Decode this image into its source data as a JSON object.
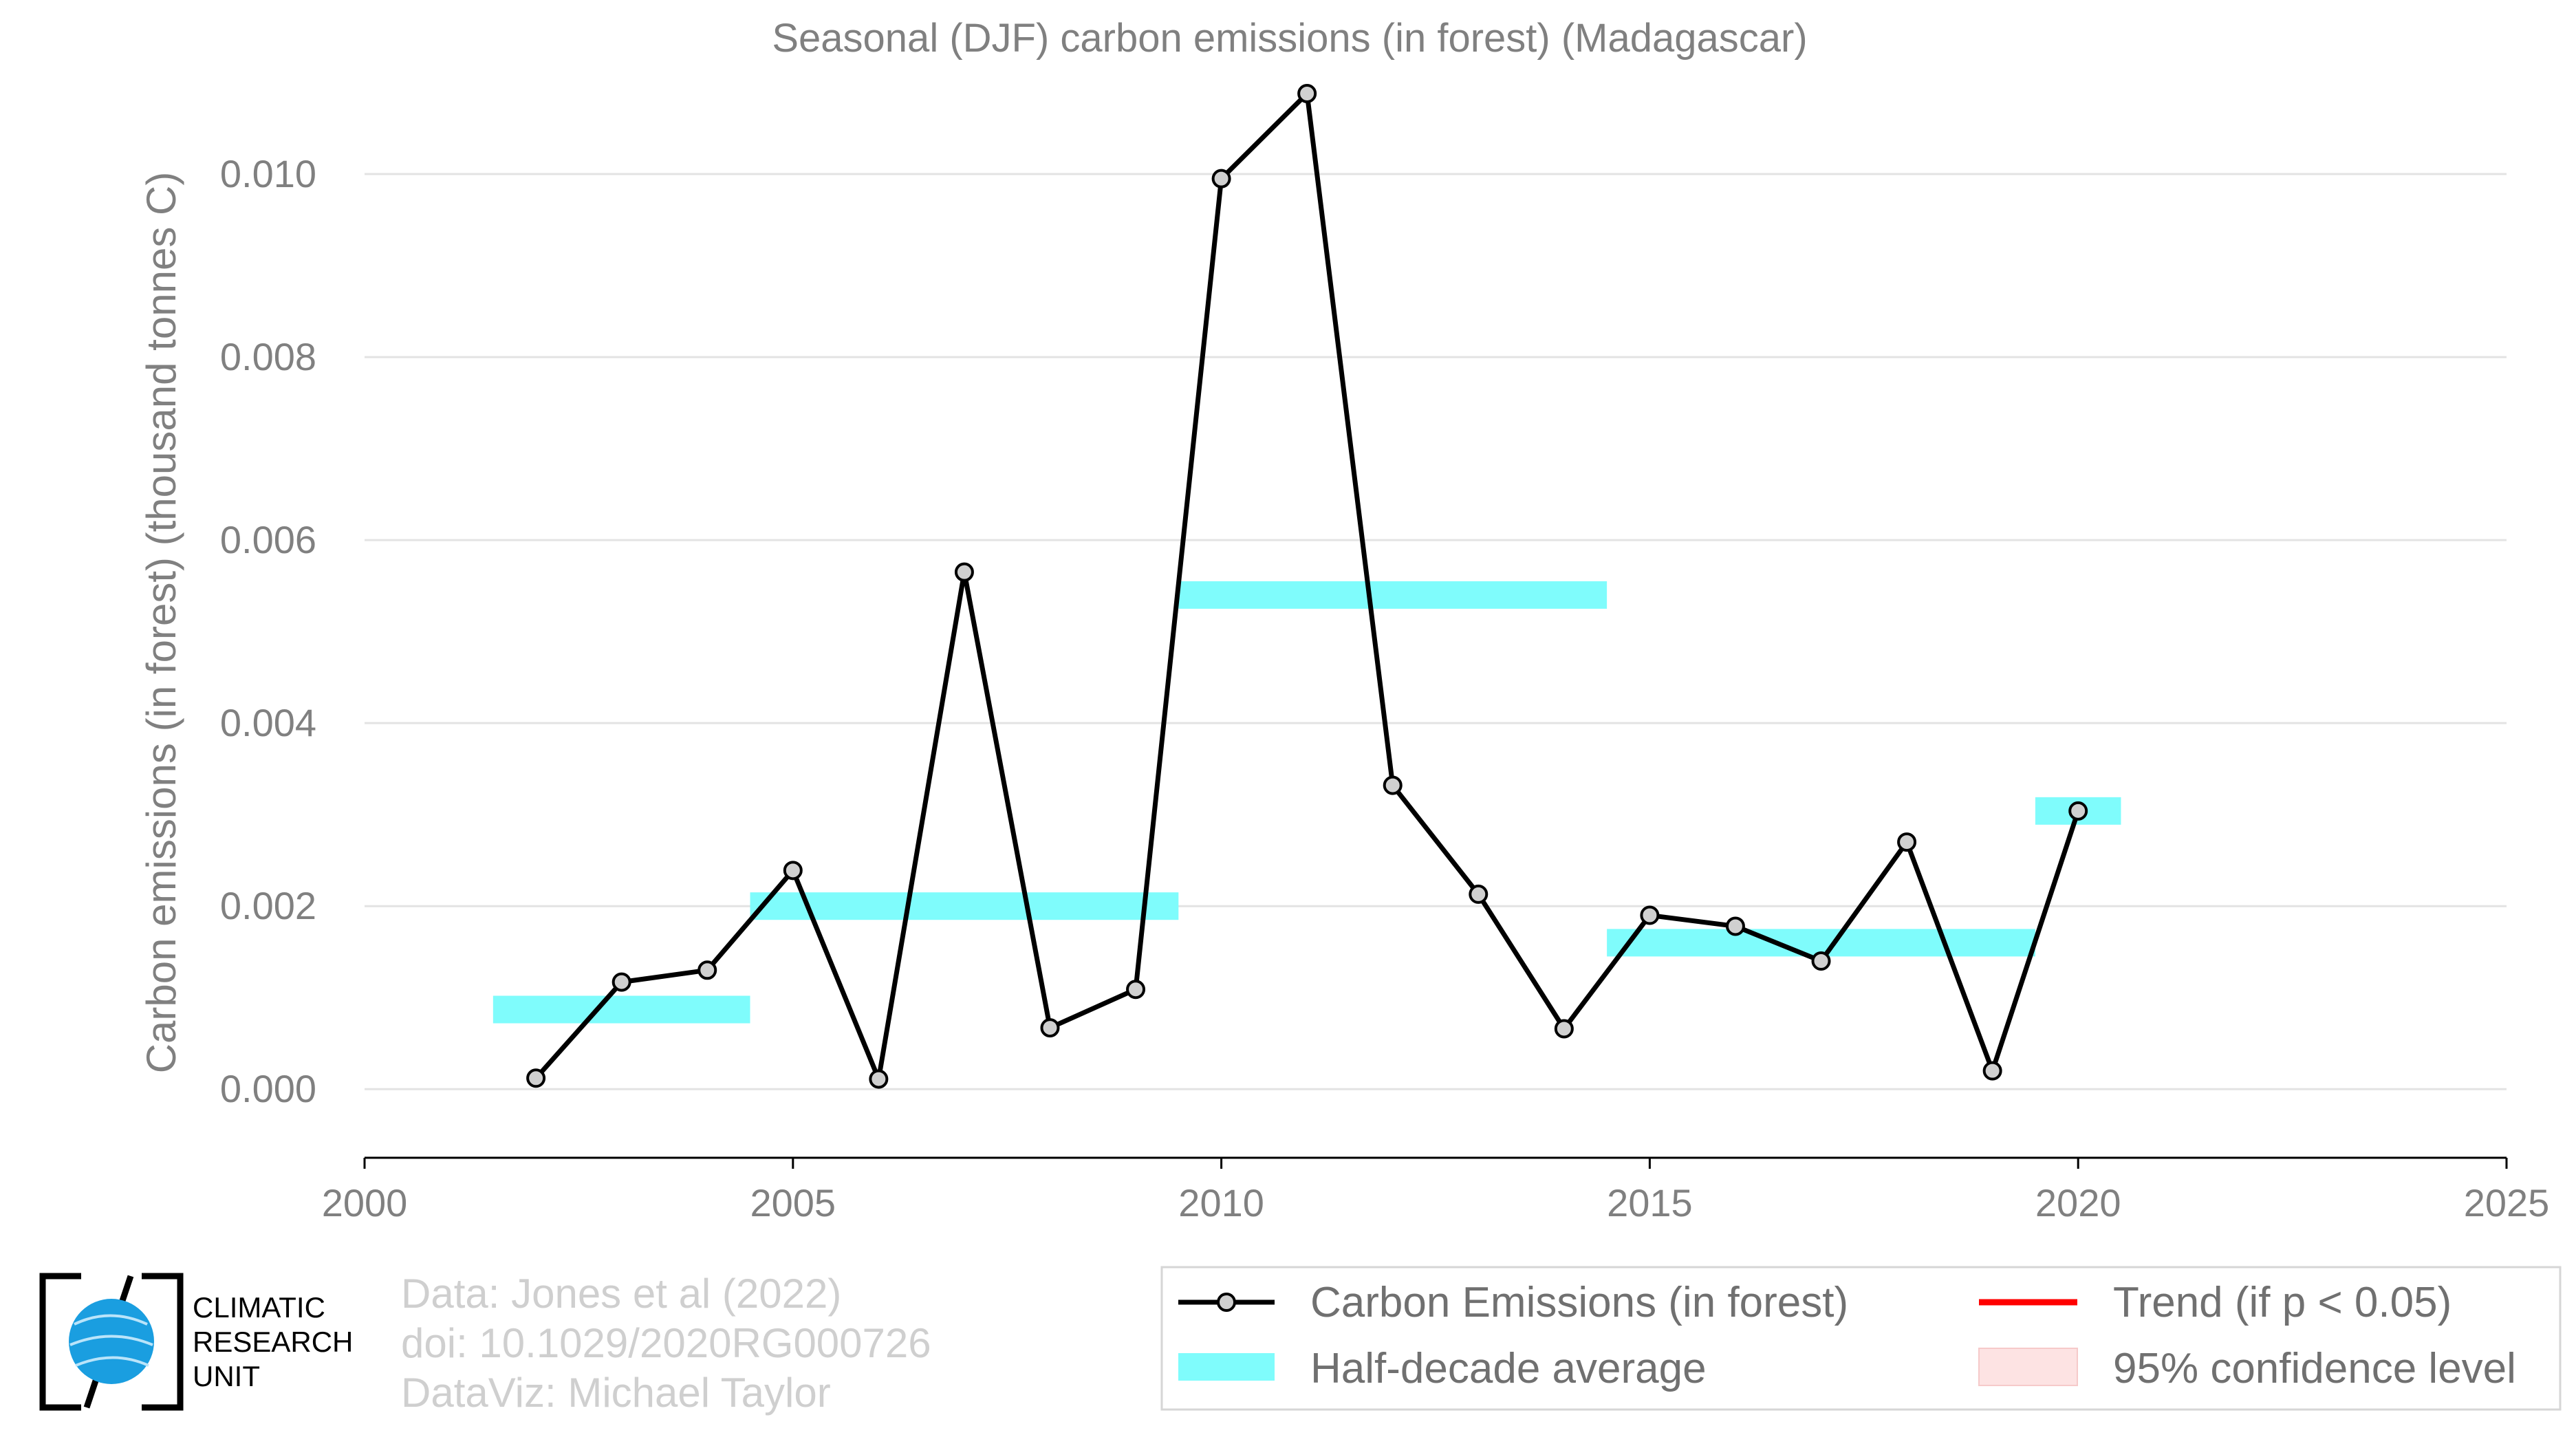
{
  "chart_data": {
    "type": "line",
    "title": "Seasonal (DJF) carbon emissions (in forest) (Madagascar)",
    "xlabel": "",
    "ylabel": "Carbon emissions (in forest) (thousand tonnes C)",
    "xlim": [
      2000,
      2025
    ],
    "ylim": [
      -0.00075,
      0.011
    ],
    "x_ticks": [
      2000,
      2005,
      2010,
      2015,
      2020,
      2025
    ],
    "y_ticks": [
      0.0,
      0.002,
      0.004,
      0.006,
      0.008,
      0.01
    ],
    "y_tick_labels": [
      "0.000",
      "0.002",
      "0.004",
      "0.006",
      "0.008",
      "0.010"
    ],
    "grid": true,
    "series": [
      {
        "name": "Carbon Emissions (in forest)",
        "color": "#000000",
        "x": [
          2002,
          2003,
          2004,
          2005,
          2006,
          2007,
          2008,
          2009,
          2010,
          2011,
          2012,
          2013,
          2014,
          2015,
          2016,
          2017,
          2018,
          2019,
          2020
        ],
        "y": [
          0.00012,
          0.00117,
          0.0013,
          0.00239,
          0.00011,
          0.00565,
          0.00067,
          0.00109,
          0.00995,
          0.01088,
          0.00332,
          0.00213,
          0.00066,
          0.0019,
          0.00178,
          0.0014,
          0.0027,
          0.0002,
          0.00304
        ]
      }
    ],
    "half_decade_average": {
      "name": "Half-decade average",
      "color": "#7ffcfc",
      "segments": [
        {
          "x0": 2001.5,
          "x1": 2004.5,
          "y": 0.00087
        },
        {
          "x0": 2004.5,
          "x1": 2009.5,
          "y": 0.002
        },
        {
          "x0": 2009.5,
          "x1": 2014.5,
          "y": 0.0054
        },
        {
          "x0": 2014.5,
          "x1": 2019.5,
          "y": 0.0016
        },
        {
          "x0": 2019.5,
          "x1": 2020.5,
          "y": 0.00304
        }
      ]
    },
    "legend": {
      "position": "bottom-right",
      "entries": [
        {
          "label": "Carbon Emissions (in forest)",
          "style": "line-marker",
          "color": "#000000"
        },
        {
          "label": "Trend (if p < 0.05)",
          "style": "line",
          "color": "#ff0000"
        },
        {
          "label": "Half-decade average",
          "style": "band",
          "color": "#7ffcfc"
        },
        {
          "label": "95% confidence level",
          "style": "band",
          "color": "#fde3e3"
        }
      ]
    }
  },
  "credits": {
    "line1": "Data: Jones et al (2022)",
    "line2": "doi: 10.1029/2020RG000726",
    "line3": "DataViz: Michael Taylor"
  },
  "logo": {
    "line1": "CLIMATIC",
    "line2": "RESEARCH",
    "line3": "UNIT"
  }
}
